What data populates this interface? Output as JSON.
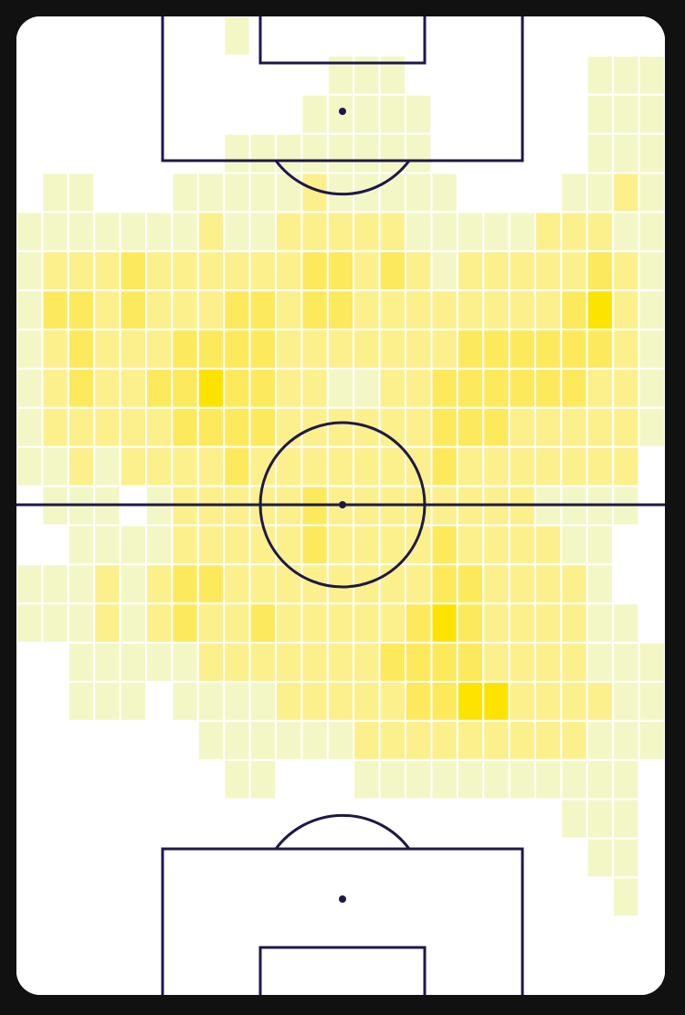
{
  "chart_data": {
    "type": "heatmap",
    "colors": [
      "#ffffff",
      "#f3f7c6",
      "#fbf08c",
      "#fde95c",
      "#fde400"
    ],
    "values": [
      [
        0,
        0,
        0,
        0,
        0,
        0,
        0,
        0,
        1,
        0,
        0,
        0,
        0,
        0,
        0,
        0,
        0,
        0,
        0,
        0,
        0,
        0,
        0,
        0,
        0
      ],
      [
        0,
        0,
        0,
        0,
        0,
        0,
        0,
        0,
        0,
        0,
        0,
        0,
        1,
        1,
        1,
        0,
        0,
        0,
        0,
        0,
        0,
        0,
        1,
        1,
        1
      ],
      [
        0,
        0,
        0,
        0,
        0,
        0,
        0,
        0,
        0,
        0,
        0,
        1,
        1,
        1,
        1,
        1,
        0,
        0,
        0,
        0,
        0,
        0,
        1,
        1,
        1
      ],
      [
        0,
        0,
        0,
        0,
        0,
        0,
        0,
        0,
        1,
        1,
        1,
        1,
        1,
        1,
        1,
        1,
        0,
        0,
        0,
        0,
        0,
        0,
        1,
        1,
        1
      ],
      [
        0,
        1,
        1,
        0,
        0,
        0,
        1,
        1,
        1,
        1,
        1,
        2,
        1,
        1,
        1,
        1,
        1,
        0,
        0,
        0,
        0,
        1,
        1,
        2,
        1
      ],
      [
        1,
        1,
        1,
        1,
        1,
        1,
        1,
        2,
        1,
        1,
        2,
        2,
        2,
        2,
        2,
        1,
        1,
        1,
        1,
        1,
        2,
        2,
        2,
        1,
        1
      ],
      [
        1,
        2,
        2,
        2,
        3,
        2,
        2,
        2,
        2,
        2,
        2,
        3,
        3,
        2,
        3,
        2,
        1,
        2,
        2,
        2,
        2,
        2,
        3,
        2,
        1
      ],
      [
        1,
        3,
        3,
        2,
        3,
        2,
        2,
        2,
        3,
        3,
        2,
        3,
        3,
        2,
        2,
        2,
        2,
        2,
        2,
        2,
        2,
        3,
        4,
        2,
        1
      ],
      [
        1,
        2,
        3,
        2,
        2,
        2,
        3,
        3,
        3,
        3,
        2,
        2,
        2,
        2,
        2,
        2,
        2,
        3,
        3,
        3,
        3,
        3,
        3,
        2,
        1
      ],
      [
        1,
        2,
        3,
        2,
        2,
        3,
        3,
        4,
        3,
        3,
        2,
        2,
        1,
        1,
        2,
        2,
        3,
        3,
        3,
        3,
        3,
        3,
        2,
        2,
        1
      ],
      [
        1,
        2,
        2,
        2,
        2,
        2,
        3,
        3,
        3,
        3,
        2,
        2,
        2,
        2,
        2,
        2,
        3,
        3,
        3,
        2,
        2,
        2,
        2,
        2,
        1
      ],
      [
        1,
        1,
        2,
        1,
        2,
        2,
        2,
        2,
        3,
        2,
        2,
        2,
        2,
        2,
        2,
        2,
        3,
        2,
        2,
        2,
        2,
        2,
        2,
        2,
        0
      ],
      [
        0,
        1,
        1,
        1,
        0,
        1,
        2,
        2,
        2,
        2,
        2,
        3,
        2,
        2,
        2,
        2,
        2,
        2,
        2,
        2,
        1,
        1,
        1,
        1,
        0
      ],
      [
        0,
        0,
        1,
        1,
        1,
        1,
        2,
        2,
        2,
        2,
        2,
        3,
        2,
        2,
        2,
        2,
        3,
        2,
        2,
        2,
        2,
        1,
        1,
        0,
        0
      ],
      [
        1,
        1,
        1,
        2,
        1,
        2,
        3,
        3,
        2,
        2,
        2,
        2,
        2,
        2,
        2,
        2,
        3,
        3,
        2,
        2,
        2,
        2,
        1,
        0,
        0
      ],
      [
        1,
        1,
        1,
        2,
        1,
        2,
        3,
        2,
        2,
        3,
        2,
        2,
        2,
        2,
        2,
        3,
        4,
        3,
        2,
        2,
        2,
        2,
        1,
        1,
        0
      ],
      [
        0,
        0,
        1,
        1,
        1,
        1,
        1,
        2,
        2,
        2,
        2,
        2,
        2,
        2,
        3,
        3,
        3,
        3,
        2,
        2,
        2,
        2,
        1,
        1,
        1
      ],
      [
        0,
        0,
        1,
        1,
        1,
        0,
        1,
        1,
        1,
        1,
        2,
        2,
        2,
        2,
        2,
        3,
        3,
        4,
        4,
        2,
        2,
        2,
        2,
        1,
        1
      ],
      [
        0,
        0,
        0,
        0,
        0,
        0,
        0,
        1,
        1,
        1,
        1,
        1,
        1,
        2,
        2,
        2,
        2,
        2,
        2,
        2,
        2,
        2,
        1,
        1,
        1
      ],
      [
        0,
        0,
        0,
        0,
        0,
        0,
        0,
        0,
        1,
        1,
        0,
        0,
        0,
        1,
        1,
        1,
        1,
        1,
        1,
        1,
        1,
        1,
        1,
        1,
        0
      ],
      [
        0,
        0,
        0,
        0,
        0,
        0,
        0,
        0,
        0,
        0,
        0,
        0,
        0,
        0,
        0,
        0,
        0,
        0,
        0,
        0,
        0,
        1,
        1,
        1,
        0
      ],
      [
        0,
        0,
        0,
        0,
        0,
        0,
        0,
        0,
        0,
        0,
        0,
        0,
        0,
        0,
        0,
        0,
        0,
        0,
        0,
        0,
        0,
        0,
        1,
        1,
        0
      ],
      [
        0,
        0,
        0,
        0,
        0,
        0,
        0,
        0,
        0,
        0,
        0,
        0,
        0,
        0,
        0,
        0,
        0,
        0,
        0,
        0,
        0,
        0,
        0,
        1,
        0
      ],
      [
        0,
        0,
        0,
        0,
        0,
        0,
        0,
        0,
        0,
        0,
        0,
        0,
        0,
        0,
        0,
        0,
        0,
        0,
        0,
        0,
        0,
        0,
        0,
        0,
        0
      ],
      [
        0,
        0,
        0,
        0,
        0,
        0,
        0,
        0,
        0,
        0,
        0,
        0,
        0,
        0,
        0,
        0,
        0,
        0,
        0,
        0,
        0,
        0,
        0,
        0,
        0
      ]
    ]
  }
}
